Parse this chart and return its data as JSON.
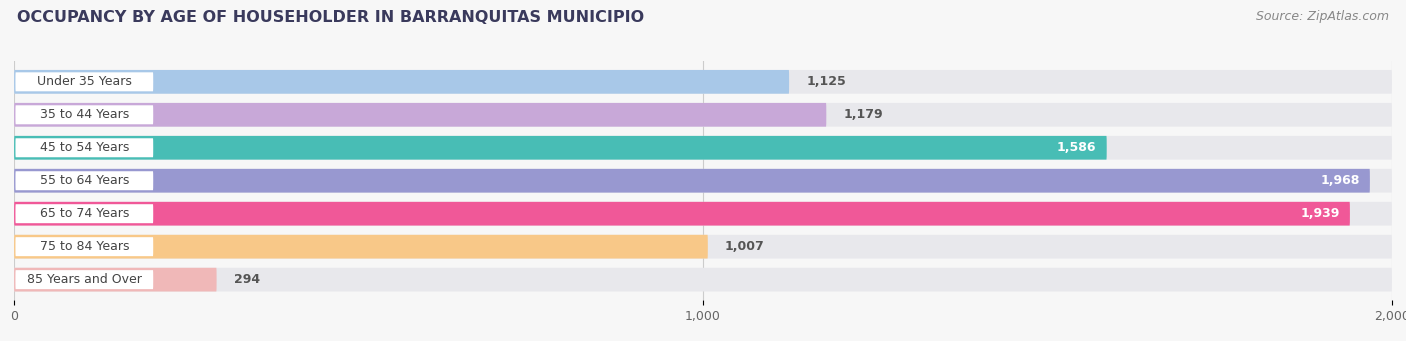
{
  "title": "OCCUPANCY BY AGE OF HOUSEHOLDER IN BARRANQUITAS MUNICIPIO",
  "source": "Source: ZipAtlas.com",
  "categories": [
    "Under 35 Years",
    "35 to 44 Years",
    "45 to 54 Years",
    "55 to 64 Years",
    "65 to 74 Years",
    "75 to 84 Years",
    "85 Years and Over"
  ],
  "values": [
    1125,
    1179,
    1586,
    1968,
    1939,
    1007,
    294
  ],
  "bar_colors": [
    "#a8c8e8",
    "#c8a8d8",
    "#48bdb5",
    "#9898d0",
    "#f05898",
    "#f8c888",
    "#f0b8b8"
  ],
  "track_color": "#e8e8ec",
  "xlim_max": 2000,
  "xticks": [
    0,
    1000,
    2000
  ],
  "xtick_labels": [
    "0",
    "1,000",
    "2,000"
  ],
  "value_inside_threshold": 1500,
  "title_fontsize": 11.5,
  "source_fontsize": 9,
  "bar_label_fontsize": 9,
  "cat_label_fontsize": 9,
  "background_color": "#f7f7f7",
  "title_color": "#3a3a5c",
  "source_color": "#888888",
  "value_color_inside": "#ffffff",
  "value_color_outside": "#555555"
}
